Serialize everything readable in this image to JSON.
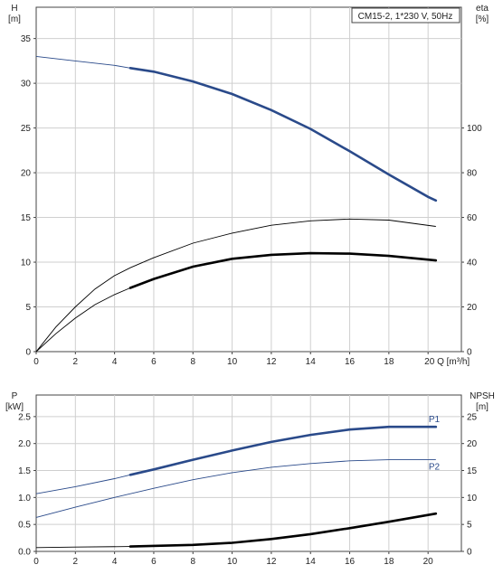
{
  "chart_data": [
    {
      "type": "line",
      "id": "head_eta",
      "title": "CM15-2, 1*230 V, 50Hz",
      "xlabel": "Q [m³/h]",
      "x_tick_suffix": "Q [m³/h]",
      "x_axis_value_label": "20",
      "y_left_label_line1": "H",
      "y_left_label_line2": "[m]",
      "y_right_label_line1": "eta",
      "y_right_label_line2": "[%]",
      "xlim": [
        0,
        21.7
      ],
      "ylim_left": [
        0,
        38.5
      ],
      "ylim_right": [
        0,
        154
      ],
      "xticks": [
        0,
        2,
        4,
        6,
        8,
        10,
        12,
        14,
        16,
        18,
        20
      ],
      "yticks_left": [
        0,
        5,
        10,
        15,
        20,
        25,
        30,
        35
      ],
      "yticks_right": [
        0,
        20,
        40,
        60,
        80,
        100
      ],
      "grid": true,
      "series": [
        {
          "axis": "left",
          "color": "#2a4a8a",
          "width_hint": "thick",
          "points_thin": [
            [
              0,
              33.0
            ],
            [
              2,
              32.5
            ],
            [
              4,
              32.0
            ],
            [
              4.8,
              31.7
            ]
          ],
          "points_thick": [
            [
              4.8,
              31.7
            ],
            [
              6,
              31.3
            ],
            [
              8,
              30.2
            ],
            [
              10,
              28.8
            ],
            [
              12,
              27.0
            ],
            [
              14,
              24.9
            ],
            [
              16,
              22.4
            ],
            [
              18,
              19.8
            ],
            [
              20,
              17.3
            ],
            [
              20.4,
              16.9
            ]
          ]
        },
        {
          "axis": "right",
          "color": "#000000",
          "points_thin": [
            [
              0,
              0
            ],
            [
              1,
              11
            ],
            [
              2,
              20
            ],
            [
              3,
              28
            ],
            [
              4,
              34
            ],
            [
              4.8,
              37.5
            ],
            [
              6,
              42
            ],
            [
              8,
              48.5
            ],
            [
              10,
              53
            ],
            [
              12,
              56.5
            ],
            [
              14,
              58.5
            ],
            [
              16,
              59.3
            ],
            [
              18,
              58.8
            ],
            [
              20.4,
              56
            ]
          ]
        },
        {
          "axis": "right",
          "color": "#000000",
          "points_thin": [
            [
              0,
              0
            ],
            [
              1,
              8
            ],
            [
              2,
              15
            ],
            [
              3,
              21
            ],
            [
              4,
              25.5
            ],
            [
              4.8,
              28.5
            ]
          ],
          "points_thick": [
            [
              4.8,
              28.5
            ],
            [
              6,
              32.5
            ],
            [
              8,
              38
            ],
            [
              10,
              41.5
            ],
            [
              12,
              43.3
            ],
            [
              14,
              44
            ],
            [
              16,
              43.8
            ],
            [
              18,
              42.8
            ],
            [
              20.4,
              40.8
            ]
          ]
        }
      ]
    },
    {
      "type": "line",
      "id": "power_npsh",
      "y_left_label_line1": "P",
      "y_left_label_line2": "[kW]",
      "y_right_label_line1": "NPSH",
      "y_right_label_line2": "[m]",
      "xlim": [
        0,
        21.7
      ],
      "ylim_left": [
        0,
        2.9
      ],
      "ylim_right": [
        0,
        29
      ],
      "xticks": [
        0,
        2,
        4,
        6,
        8,
        10,
        12,
        14,
        16,
        18,
        20
      ],
      "yticks_left": [
        "0.0",
        "0.5",
        "1.0",
        "1.5",
        "2.0",
        "2.5"
      ],
      "yticks_right": [
        0,
        5,
        10,
        15,
        20,
        25
      ],
      "grid": true,
      "series": [
        {
          "name": "P1",
          "axis": "left",
          "color": "#2a4a8a",
          "points_thin": [
            [
              0,
              1.07
            ],
            [
              2,
              1.2
            ],
            [
              4,
              1.35
            ],
            [
              4.8,
              1.42
            ]
          ],
          "points_thick": [
            [
              4.8,
              1.42
            ],
            [
              6,
              1.52
            ],
            [
              8,
              1.7
            ],
            [
              10,
              1.87
            ],
            [
              12,
              2.03
            ],
            [
              14,
              2.16
            ],
            [
              16,
              2.26
            ],
            [
              18,
              2.31
            ],
            [
              20.4,
              2.31
            ]
          ]
        },
        {
          "name": "P2",
          "axis": "left",
          "color": "#2a4a8a",
          "points_thin": [
            [
              0,
              0.63
            ],
            [
              2,
              0.82
            ],
            [
              4,
              1.0
            ],
            [
              6,
              1.17
            ],
            [
              8,
              1.33
            ],
            [
              10,
              1.46
            ],
            [
              12,
              1.56
            ],
            [
              14,
              1.63
            ],
            [
              16,
              1.68
            ],
            [
              18,
              1.7
            ],
            [
              20.4,
              1.7
            ]
          ]
        },
        {
          "axis": "right",
          "color": "#000000",
          "points_thin": [
            [
              0,
              0.7
            ],
            [
              2,
              0.8
            ],
            [
              4.8,
              0.9
            ]
          ],
          "points_thick": [
            [
              4.8,
              0.9
            ],
            [
              8,
              1.2
            ],
            [
              10,
              1.6
            ],
            [
              12,
              2.3
            ],
            [
              14,
              3.2
            ],
            [
              16,
              4.3
            ],
            [
              18,
              5.5
            ],
            [
              20.4,
              7.0
            ]
          ]
        }
      ]
    }
  ]
}
